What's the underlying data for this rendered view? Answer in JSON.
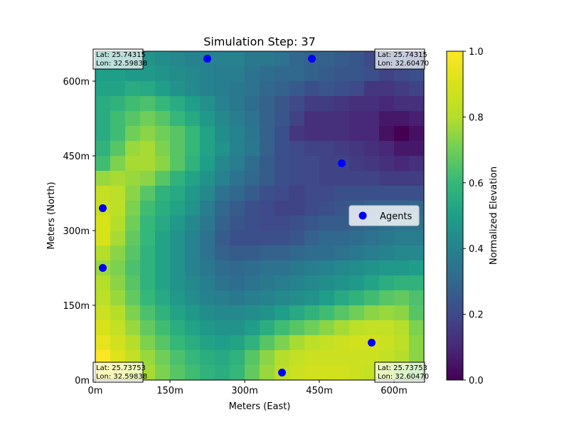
{
  "chart_data": {
    "type": "heatmap",
    "title": "Simulation Step: 37",
    "xlabel": "Meters (East)",
    "ylabel": "Meters (North)",
    "xlim": [
      0,
      660
    ],
    "ylim": [
      0,
      660
    ],
    "x_ticks": [
      {
        "value": 0,
        "label": "0m"
      },
      {
        "value": 150,
        "label": "150m"
      },
      {
        "value": 300,
        "label": "300m"
      },
      {
        "value": 450,
        "label": "450m"
      },
      {
        "value": 600,
        "label": "600m"
      }
    ],
    "y_ticks": [
      {
        "value": 0,
        "label": "0m"
      },
      {
        "value": 150,
        "label": "150m"
      },
      {
        "value": 300,
        "label": "300m"
      },
      {
        "value": 450,
        "label": "450m"
      },
      {
        "value": 600,
        "label": "600m"
      }
    ],
    "colormap": "viridis",
    "colorbar": {
      "label": "Normalized Elevation",
      "range": [
        0,
        1
      ],
      "ticks": [
        {
          "value": 0,
          "label": "0.0"
        },
        {
          "value": 0.2,
          "label": "0.2"
        },
        {
          "value": 0.4,
          "label": "0.4"
        },
        {
          "value": 0.6,
          "label": "0.6"
        },
        {
          "value": 0.8,
          "label": "0.8"
        },
        {
          "value": 1.0,
          "label": "1.0"
        }
      ]
    },
    "grid": {
      "rows": 22,
      "cols": 22,
      "cell_size_m": 30,
      "values_top_to_bottom": [
        [
          0.48,
          0.48,
          0.46,
          0.46,
          0.44,
          0.42,
          0.4,
          0.4,
          0.4,
          0.4,
          0.36,
          0.36,
          0.34,
          0.3,
          0.28,
          0.28,
          0.26,
          0.24,
          0.2,
          0.2,
          0.22,
          0.2
        ],
        [
          0.5,
          0.5,
          0.48,
          0.48,
          0.46,
          0.44,
          0.42,
          0.4,
          0.38,
          0.38,
          0.34,
          0.32,
          0.3,
          0.3,
          0.28,
          0.26,
          0.24,
          0.24,
          0.22,
          0.18,
          0.2,
          0.22
        ],
        [
          0.52,
          0.52,
          0.55,
          0.54,
          0.5,
          0.46,
          0.43,
          0.4,
          0.38,
          0.36,
          0.34,
          0.3,
          0.28,
          0.25,
          0.22,
          0.24,
          0.22,
          0.2,
          0.14,
          0.14,
          0.16,
          0.18
        ],
        [
          0.55,
          0.58,
          0.62,
          0.64,
          0.6,
          0.55,
          0.5,
          0.45,
          0.4,
          0.36,
          0.32,
          0.28,
          0.24,
          0.2,
          0.16,
          0.16,
          0.14,
          0.12,
          0.12,
          0.1,
          0.12,
          0.12
        ],
        [
          0.55,
          0.62,
          0.66,
          0.7,
          0.66,
          0.6,
          0.54,
          0.48,
          0.42,
          0.38,
          0.34,
          0.28,
          0.24,
          0.18,
          0.12,
          0.12,
          0.12,
          0.1,
          0.1,
          0.06,
          0.06,
          0.08
        ],
        [
          0.55,
          0.62,
          0.7,
          0.74,
          0.7,
          0.66,
          0.6,
          0.52,
          0.44,
          0.4,
          0.35,
          0.28,
          0.22,
          0.14,
          0.12,
          0.12,
          0.12,
          0.1,
          0.1,
          0.04,
          0.0,
          0.04
        ],
        [
          0.58,
          0.66,
          0.76,
          0.78,
          0.72,
          0.66,
          0.6,
          0.52,
          0.46,
          0.4,
          0.36,
          0.28,
          0.22,
          0.2,
          0.18,
          0.18,
          0.16,
          0.14,
          0.12,
          0.1,
          0.06,
          0.06
        ],
        [
          0.62,
          0.72,
          0.78,
          0.78,
          0.74,
          0.66,
          0.58,
          0.5,
          0.42,
          0.38,
          0.32,
          0.26,
          0.22,
          0.2,
          0.2,
          0.18,
          0.18,
          0.16,
          0.14,
          0.12,
          0.1,
          0.12
        ],
        [
          0.76,
          0.78,
          0.76,
          0.74,
          0.66,
          0.58,
          0.52,
          0.46,
          0.4,
          0.34,
          0.3,
          0.26,
          0.22,
          0.2,
          0.2,
          0.18,
          0.18,
          0.18,
          0.18,
          0.16,
          0.16,
          0.16
        ],
        [
          0.84,
          0.82,
          0.74,
          0.66,
          0.58,
          0.54,
          0.48,
          0.42,
          0.34,
          0.3,
          0.26,
          0.22,
          0.2,
          0.18,
          0.2,
          0.2,
          0.22,
          0.22,
          0.22,
          0.22,
          0.22,
          0.22
        ],
        [
          0.86,
          0.82,
          0.72,
          0.62,
          0.56,
          0.52,
          0.46,
          0.38,
          0.3,
          0.26,
          0.22,
          0.2,
          0.18,
          0.18,
          0.2,
          0.22,
          0.24,
          0.26,
          0.28,
          0.28,
          0.28,
          0.3
        ],
        [
          0.9,
          0.8,
          0.7,
          0.6,
          0.54,
          0.48,
          0.42,
          0.36,
          0.28,
          0.24,
          0.22,
          0.2,
          0.2,
          0.22,
          0.24,
          0.26,
          0.26,
          0.28,
          0.3,
          0.32,
          0.34,
          0.34
        ],
        [
          0.9,
          0.78,
          0.68,
          0.6,
          0.52,
          0.46,
          0.4,
          0.34,
          0.26,
          0.22,
          0.22,
          0.22,
          0.22,
          0.24,
          0.28,
          0.3,
          0.3,
          0.32,
          0.34,
          0.36,
          0.38,
          0.38
        ],
        [
          0.8,
          0.74,
          0.66,
          0.58,
          0.52,
          0.46,
          0.4,
          0.34,
          0.28,
          0.26,
          0.26,
          0.28,
          0.28,
          0.3,
          0.32,
          0.32,
          0.34,
          0.36,
          0.38,
          0.4,
          0.42,
          0.42
        ],
        [
          0.76,
          0.72,
          0.64,
          0.58,
          0.52,
          0.46,
          0.4,
          0.36,
          0.32,
          0.3,
          0.32,
          0.34,
          0.34,
          0.36,
          0.38,
          0.4,
          0.42,
          0.44,
          0.46,
          0.48,
          0.48,
          0.5
        ],
        [
          0.8,
          0.74,
          0.66,
          0.58,
          0.52,
          0.46,
          0.42,
          0.38,
          0.34,
          0.32,
          0.34,
          0.36,
          0.38,
          0.4,
          0.42,
          0.44,
          0.46,
          0.48,
          0.52,
          0.56,
          0.58,
          0.58
        ],
        [
          0.82,
          0.76,
          0.68,
          0.6,
          0.54,
          0.48,
          0.44,
          0.4,
          0.38,
          0.36,
          0.38,
          0.4,
          0.42,
          0.44,
          0.46,
          0.5,
          0.54,
          0.58,
          0.62,
          0.66,
          0.68,
          0.64
        ],
        [
          0.86,
          0.8,
          0.72,
          0.64,
          0.58,
          0.52,
          0.48,
          0.44,
          0.42,
          0.42,
          0.44,
          0.46,
          0.5,
          0.54,
          0.58,
          0.62,
          0.66,
          0.7,
          0.74,
          0.76,
          0.74,
          0.66
        ],
        [
          0.9,
          0.84,
          0.76,
          0.68,
          0.62,
          0.56,
          0.52,
          0.48,
          0.46,
          0.46,
          0.5,
          0.56,
          0.62,
          0.66,
          0.7,
          0.74,
          0.78,
          0.82,
          0.84,
          0.84,
          0.8,
          0.72
        ],
        [
          0.94,
          0.88,
          0.8,
          0.72,
          0.66,
          0.6,
          0.56,
          0.52,
          0.5,
          0.52,
          0.58,
          0.66,
          0.72,
          0.78,
          0.82,
          0.84,
          0.86,
          0.88,
          0.88,
          0.86,
          0.82,
          0.74
        ],
        [
          1.0,
          0.92,
          0.84,
          0.76,
          0.7,
          0.64,
          0.6,
          0.56,
          0.54,
          0.58,
          0.66,
          0.74,
          0.8,
          0.84,
          0.86,
          0.86,
          0.86,
          0.86,
          0.86,
          0.84,
          0.8,
          0.74
        ],
        [
          0.98,
          0.94,
          0.86,
          0.78,
          0.72,
          0.66,
          0.62,
          0.58,
          0.56,
          0.6,
          0.68,
          0.76,
          0.82,
          0.86,
          0.88,
          0.88,
          0.88,
          0.86,
          0.84,
          0.8,
          0.74,
          0.7
        ]
      ]
    },
    "agents": {
      "legend_label": "Agents",
      "legend_position": "center-right",
      "color": "#0000ff",
      "points": [
        {
          "x": 15,
          "y": 345
        },
        {
          "x": 15,
          "y": 225
        },
        {
          "x": 225,
          "y": 645
        },
        {
          "x": 435,
          "y": 645
        },
        {
          "x": 495,
          "y": 435
        },
        {
          "x": 555,
          "y": 75
        },
        {
          "x": 375,
          "y": 15
        }
      ]
    },
    "corner_labels": [
      {
        "position": "top-left",
        "lat": "Lat: 25.74315",
        "lon": "Lon: 32.59838"
      },
      {
        "position": "top-right",
        "lat": "Lat: 25.74315",
        "lon": "Lon: 32.60470"
      },
      {
        "position": "bottom-left",
        "lat": "Lat: 25.73753",
        "lon": "Lon: 32.59838"
      },
      {
        "position": "bottom-right",
        "lat": "Lat: 25.73753",
        "lon": "Lon: 32.60470"
      }
    ]
  }
}
